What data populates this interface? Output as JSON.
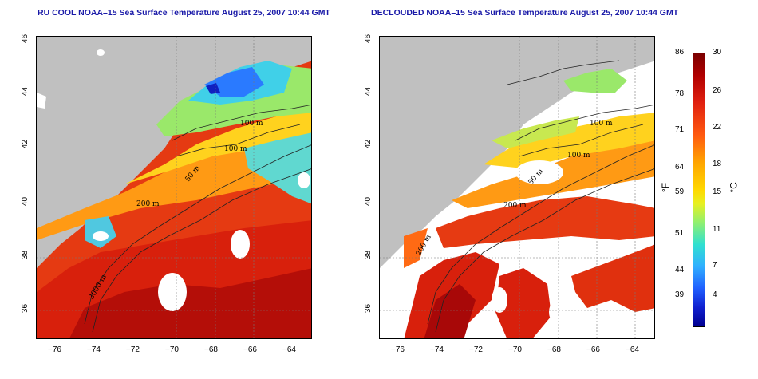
{
  "titles": {
    "left": "RU COOL NOAA–15 Sea Surface Temperature August 25, 2007 10:44 GMT",
    "right": "DECLOUDED NOAA–15 Sea Surface Temperature August 25, 2007 10:44 GMT"
  },
  "axes": {
    "x_ticks": [
      "−76",
      "−74",
      "−72",
      "−70",
      "−68",
      "−66",
      "−64"
    ],
    "y_ticks": [
      "46",
      "44",
      "42",
      "40",
      "38",
      "36"
    ]
  },
  "contours": {
    "label_100": "100 m",
    "label_50": "50 m",
    "label_200": "200 m",
    "label_3000": "3000 m"
  },
  "colorbar": {
    "f_ticks": [
      "86",
      "78",
      "71",
      "64",
      "59",
      "51",
      "44",
      "39"
    ],
    "c_ticks": [
      "30",
      "26",
      "22",
      "18",
      "15",
      "11",
      "7",
      "4"
    ],
    "f_unit": "°F",
    "c_unit": "°C"
  },
  "colors": {
    "land": "#c0c0c0",
    "cloud": "#ffffff",
    "warm": "#e02010",
    "cool": "#30c0ff"
  }
}
